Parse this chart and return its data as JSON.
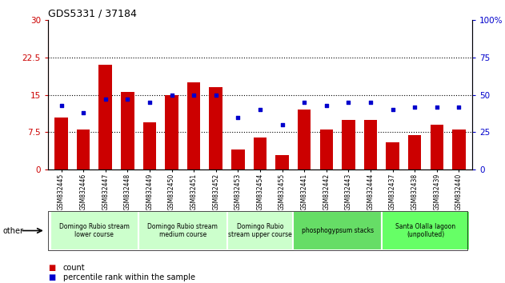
{
  "title": "GDS5331 / 37184",
  "categories": [
    "GSM832445",
    "GSM832446",
    "GSM832447",
    "GSM832448",
    "GSM832449",
    "GSM832450",
    "GSM832451",
    "GSM832452",
    "GSM832453",
    "GSM832454",
    "GSM832455",
    "GSM832441",
    "GSM832442",
    "GSM832443",
    "GSM832444",
    "GSM832437",
    "GSM832438",
    "GSM832439",
    "GSM832440"
  ],
  "counts": [
    10.5,
    8.0,
    21.0,
    15.5,
    9.5,
    15.0,
    17.5,
    16.5,
    4.0,
    6.5,
    3.0,
    12.0,
    8.0,
    10.0,
    10.0,
    5.5,
    7.0,
    9.0,
    8.0
  ],
  "percentiles": [
    43,
    38,
    47,
    47,
    45,
    50,
    50,
    50,
    35,
    40,
    30,
    45,
    43,
    45,
    45,
    40,
    42,
    42,
    42
  ],
  "bar_color": "#cc0000",
  "dot_color": "#0000cc",
  "left_ylim": [
    0,
    30
  ],
  "right_ylim": [
    0,
    100
  ],
  "left_yticks": [
    0,
    7.5,
    15,
    22.5,
    30
  ],
  "right_yticks": [
    0,
    25,
    50,
    75,
    100
  ],
  "left_yticklabels": [
    "0",
    "7.5",
    "15",
    "22.5",
    "30"
  ],
  "right_yticklabels": [
    "0",
    "25",
    "50",
    "75",
    "100%"
  ],
  "groups": [
    {
      "label": "Domingo Rubio stream\nlower course",
      "start": 0,
      "end": 3,
      "color": "#ccffcc"
    },
    {
      "label": "Domingo Rubio stream\nmedium course",
      "start": 4,
      "end": 7,
      "color": "#ccffcc"
    },
    {
      "label": "Domingo Rubio\nstream upper course",
      "start": 8,
      "end": 10,
      "color": "#ccffcc"
    },
    {
      "label": "phosphogypsum stacks",
      "start": 11,
      "end": 14,
      "color": "#66dd66"
    },
    {
      "label": "Santa Olalla lagoon\n(unpolluted)",
      "start": 15,
      "end": 18,
      "color": "#66ff66"
    }
  ],
  "other_label": "other",
  "legend_count_label": "count",
  "legend_pct_label": "percentile rank within the sample",
  "hlines": [
    7.5,
    15,
    22.5
  ]
}
